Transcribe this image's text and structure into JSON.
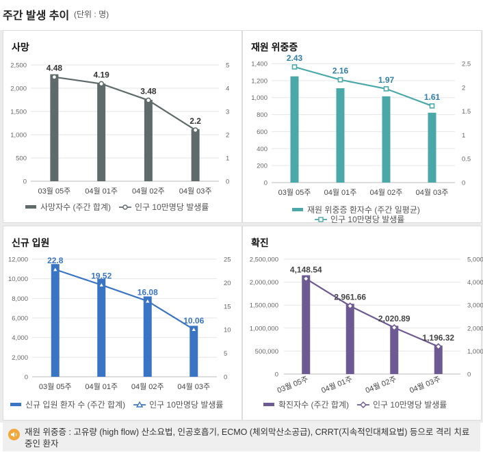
{
  "header": {
    "title": "주간 발생 추이",
    "unit": "(단위 : 명)"
  },
  "footnote": "재원 위중증 : 고유량 (high flow) 산소요법, 인공호흡기, ECMO (체외막산소공급), CRRT(지속적인대체요법) 등으로 격리 치료 중인 환자",
  "chart_data": [
    {
      "id": "deaths",
      "type": "bar+line",
      "title": "사망",
      "categories": [
        "03월 05주",
        "04월 01주",
        "04월 02주",
        "04월 03주"
      ],
      "bars": {
        "name": "사망자수 (주간 합계)",
        "values": [
          2300,
          2100,
          1750,
          1120
        ],
        "color": "#5f6b6b"
      },
      "line": {
        "name": "인구 10만명당 발생률",
        "values": [
          4.48,
          4.19,
          3.48,
          2.2
        ],
        "labels": [
          "4.48",
          "4.19",
          "3.48",
          "2.2"
        ],
        "color": "#5f6b6b",
        "marker": "circle",
        "label_color": "#333333"
      },
      "y_left": {
        "min": 0,
        "max": 2500,
        "ticks": [
          "0",
          "500",
          "1,000",
          "1,500",
          "2,000",
          "2,500"
        ]
      },
      "y_right": {
        "min": 0,
        "max": 5,
        "ticks": [
          "0",
          "1",
          "2",
          "3",
          "4",
          "5"
        ]
      }
    },
    {
      "id": "critical",
      "type": "bar+line",
      "title": "재원 위중증",
      "categories": [
        "03월 05주",
        "04월 01주",
        "04월 02주",
        "04월 03주"
      ],
      "bars": {
        "name": "재원 위중증 환자수 (주간 일평균)",
        "values": [
          1250,
          1110,
          1015,
          822
        ],
        "color": "#4aa8a8"
      },
      "line": {
        "name": "인구 10만명당 발생률",
        "values": [
          2.43,
          2.16,
          1.97,
          1.61
        ],
        "labels": [
          "2.43",
          "2.16",
          "1.97",
          "1.61"
        ],
        "color": "#4aa8a8",
        "marker": "square",
        "label_color": "#2f7fa8"
      },
      "y_left": {
        "min": 0,
        "max": 1400,
        "ticks": [
          "0",
          "200",
          "400",
          "600",
          "800",
          "1,000",
          "1,200",
          "1,400"
        ]
      },
      "y_right": {
        "min": 0,
        "max": 2.5,
        "ticks": [
          "0",
          "0.5",
          "1",
          "1.5",
          "2",
          "2.5"
        ]
      }
    },
    {
      "id": "admissions",
      "type": "bar+line",
      "title": "신규 입원",
      "categories": [
        "03월 05주",
        "04월 01주",
        "04월 02주",
        "04월 03주"
      ],
      "bars": {
        "name": "신규 입원 환자 수 (주간 합계)",
        "values": [
          11500,
          10000,
          8200,
          5200
        ],
        "color": "#3a74c4"
      },
      "line": {
        "name": "인구 10만명당 발생률",
        "values": [
          22.8,
          19.52,
          16.08,
          10.06
        ],
        "labels": [
          "22.8",
          "19.52",
          "16.08",
          "10.06"
        ],
        "color": "#3a74c4",
        "marker": "triangle",
        "label_color": "#3a74c4"
      },
      "y_left": {
        "min": 0,
        "max": 12000,
        "ticks": [
          "0",
          "2,000",
          "4,000",
          "6,000",
          "8,000",
          "10,000",
          "12,000"
        ]
      },
      "y_right": {
        "min": 0,
        "max": 25,
        "ticks": [
          "0",
          "5",
          "10",
          "15",
          "20",
          "25"
        ]
      }
    },
    {
      "id": "confirmed",
      "type": "bar+line",
      "title": "확진",
      "categories": [
        "03월 05주",
        "04월 01주",
        "04월 02주",
        "04월 03주"
      ],
      "bars": {
        "name": "확진자수 (주간 합계)",
        "values": [
          2150000,
          1530000,
          1050000,
          620000
        ],
        "color": "#6e5a93"
      },
      "line": {
        "name": "인구 10만명당 발생률",
        "values": [
          4148.54,
          2961.66,
          2020.89,
          1196.32
        ],
        "labels": [
          "4,148.54",
          "2,961.66",
          "2,020.89",
          "1,196.32"
        ],
        "color": "#6e5a93",
        "marker": "diamond",
        "label_color": "#444444"
      },
      "y_left": {
        "min": 0,
        "max": 2500000,
        "ticks": [
          "0",
          "500,000",
          "1,000,000",
          "1,500,000",
          "2,000,000",
          "2,500,000"
        ]
      },
      "y_right": {
        "min": 0,
        "max": 5000,
        "ticks": [
          "0",
          "1,000",
          "2,000",
          "3,000",
          "4,000",
          "5,000"
        ]
      }
    }
  ]
}
